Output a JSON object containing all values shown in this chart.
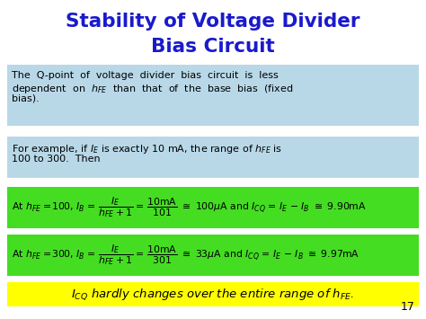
{
  "title_line1": "Stability of Voltage Divider",
  "title_line2": "Bias Circuit",
  "title_color": "#1a1acc",
  "bg_color": "#ffffff",
  "box1_color": "#b8d8e8",
  "box2_color": "#b8d8e8",
  "box3_color": "#44dd22",
  "box4_color": "#44dd22",
  "box5_color": "#ffff00",
  "page_number": "17",
  "eq1": "At $h_{FE}$ =100, $I_B$ = $\\dfrac{I_E}{h_{FE}+1}$ = $\\dfrac{\\mathrm{10mA}}{101}$ $\\cong$ 100μA and $I_{CQ}$ = $I_E$ − $I_B$ $\\cong$ 9.90mA",
  "eq2": "At $h_{FE}$ =300, $I_B$ = $\\dfrac{I_E}{h_{FE}+1}$ = $\\dfrac{\\mathrm{10mA}}{301}$ $\\cong$ 33μA and $I_{CQ}$ = $I_E$ − $I_B$ $\\cong$ 9.97mA",
  "bottom_text": "$I_{CQ}$ hardly changes over the entire range of $h_{FE}$."
}
